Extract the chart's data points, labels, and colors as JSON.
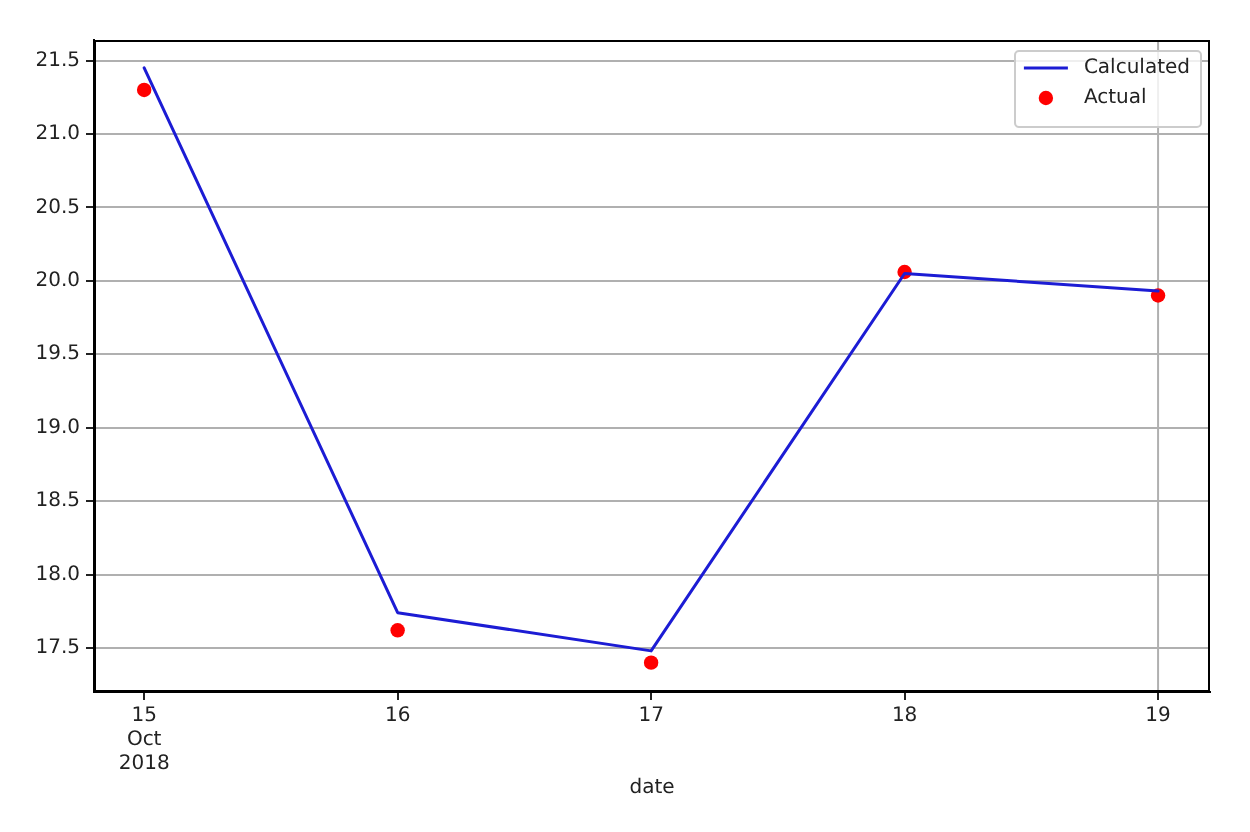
{
  "chart_data": {
    "type": "line",
    "xlabel": "date",
    "x": [
      "2018-10-15",
      "2018-10-16",
      "2018-10-17",
      "2018-10-18",
      "2018-10-19"
    ],
    "series": [
      {
        "name": "Calculated",
        "color": "#1c1cd4",
        "values": [
          21.45,
          17.74,
          17.48,
          20.05,
          19.93
        ]
      },
      {
        "name": "Actual",
        "type": "scatter",
        "color": "#ff0000",
        "marker": "circle",
        "values": [
          21.3,
          17.62,
          17.4,
          20.06,
          19.9
        ]
      }
    ],
    "xlim": [
      "2018-10-14T19:15",
      "2018-10-19T04:55"
    ],
    "xticks": [
      {
        "value": "2018-10-15",
        "label": "15\nOct\n2018"
      },
      {
        "value": "2018-10-16",
        "label": "16"
      },
      {
        "value": "2018-10-17",
        "label": "17"
      },
      {
        "value": "2018-10-18",
        "label": "18"
      },
      {
        "value": "2018-10-19",
        "label": "19"
      }
    ],
    "ylim": [
      17.2,
      21.64
    ],
    "yticks": [
      17.5,
      {
        "value": 18,
        "label": "18.0"
      },
      18.5,
      {
        "value": 19,
        "label": "19.0"
      },
      19.5,
      {
        "value": 20,
        "label": "20.0"
      },
      20.5,
      {
        "value": 21,
        "label": "21.0"
      },
      21.5
    ],
    "grid": "y",
    "legend": "top right",
    "ref_lines": [
      {
        "axis": "x",
        "value": "2018-10-19",
        "color": "#b0b0b0"
      }
    ]
  }
}
